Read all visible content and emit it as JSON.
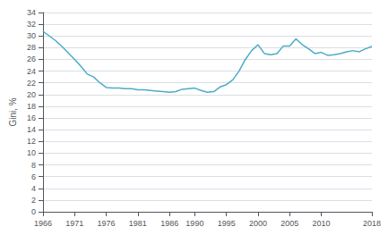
{
  "chart_data": {
    "type": "line",
    "x": [
      1966,
      1967,
      1968,
      1969,
      1970,
      1971,
      1972,
      1973,
      1974,
      1975,
      1976,
      1977,
      1978,
      1979,
      1980,
      1981,
      1982,
      1983,
      1984,
      1985,
      1986,
      1987,
      1988,
      1989,
      1990,
      1991,
      1992,
      1993,
      1994,
      1995,
      1996,
      1997,
      1998,
      1999,
      2000,
      2001,
      2002,
      2003,
      2004,
      2005,
      2006,
      2007,
      2008,
      2009,
      2010,
      2011,
      2012,
      2013,
      2014,
      2015,
      2016,
      2017,
      2018
    ],
    "values": [
      30.8,
      30.0,
      29.2,
      28.2,
      27.1,
      26.0,
      24.8,
      23.5,
      23.0,
      22.0,
      21.2,
      21.1,
      21.1,
      21.0,
      21.0,
      20.8,
      20.8,
      20.7,
      20.6,
      20.5,
      20.4,
      20.5,
      20.9,
      21.0,
      21.1,
      20.7,
      20.4,
      20.5,
      21.3,
      21.7,
      22.5,
      24.0,
      26.0,
      27.5,
      28.5,
      27.0,
      26.8,
      27.0,
      28.3,
      28.3,
      29.5,
      28.5,
      27.8,
      27.0,
      27.2,
      26.7,
      26.8,
      27.0,
      27.3,
      27.5,
      27.3,
      27.8,
      28.2
    ],
    "color": "#4BACC6",
    "ylabel": "Gini, %",
    "xlim": [
      1966,
      2018
    ],
    "ylim": [
      0,
      34
    ],
    "xticks": [
      1966,
      1971,
      1976,
      1981,
      1986,
      1990,
      1995,
      2000,
      2005,
      2010,
      2018
    ],
    "yticks": [
      0,
      2,
      4,
      6,
      8,
      10,
      12,
      14,
      16,
      18,
      20,
      22,
      24,
      26,
      28,
      30,
      32,
      34
    ],
    "grid": true
  }
}
